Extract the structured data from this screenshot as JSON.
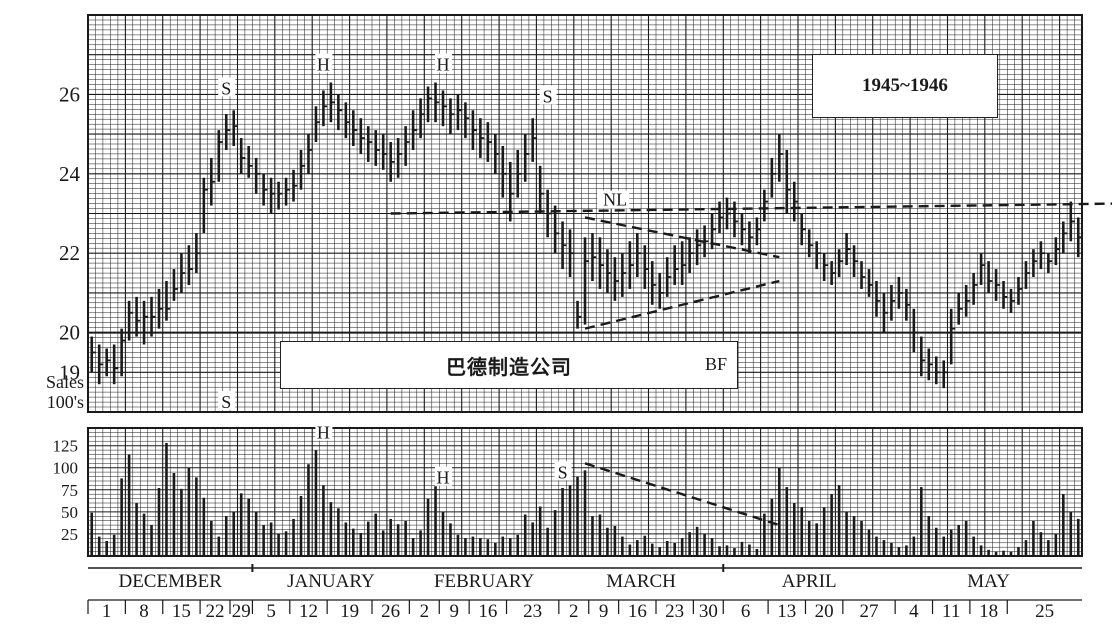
{
  "chart_data": {
    "type": "bar",
    "title": "1945~1946",
    "company": "巴德制造公司",
    "ticker": "BF",
    "price_axis": {
      "ticks": [
        19,
        20,
        22,
        24,
        26
      ],
      "tick_labels": [
        "19",
        "20",
        "22",
        "24",
        "26"
      ],
      "ylim": [
        18,
        28
      ]
    },
    "volume_axis": {
      "label_line1": "Sales",
      "label_line2": "100's",
      "ticks": [
        25,
        50,
        75,
        100,
        125
      ],
      "tick_labels": [
        "25",
        "50",
        "75",
        "100",
        "125"
      ],
      "ylim": [
        0,
        145
      ]
    },
    "months": [
      "DECEMBER",
      "JANUARY",
      "FEBRUARY",
      "MARCH",
      "APRIL",
      "MAY"
    ],
    "week_labels": [
      "1",
      "8",
      "15",
      "22",
      "29",
      "5",
      "12",
      "19",
      "26",
      "2",
      "9",
      "16",
      "23",
      "2",
      "9",
      "16",
      "23",
      "30",
      "6",
      "13",
      "20",
      "27",
      "4",
      "11",
      "18",
      "25"
    ],
    "daily": [
      [
        19.9,
        19.0,
        19.5,
        49
      ],
      [
        19.7,
        18.7,
        19.2,
        22
      ],
      [
        19.6,
        18.9,
        19.3,
        17
      ],
      [
        19.7,
        18.7,
        19.1,
        24
      ],
      [
        20.1,
        18.9,
        19.8,
        88
      ],
      [
        20.8,
        19.8,
        20.5,
        115
      ],
      [
        20.9,
        19.9,
        20.3,
        60
      ],
      [
        20.8,
        19.7,
        20.4,
        48
      ],
      [
        20.9,
        19.9,
        20.4,
        35
      ],
      [
        21.1,
        20.1,
        20.6,
        77
      ],
      [
        21.3,
        20.3,
        20.6,
        128
      ],
      [
        21.6,
        20.8,
        21.1,
        94
      ],
      [
        22.0,
        21.0,
        21.5,
        76
      ],
      [
        22.2,
        21.2,
        21.6,
        100
      ],
      [
        22.5,
        21.5,
        22.0,
        89
      ],
      [
        23.9,
        22.5,
        23.6,
        66
      ],
      [
        24.4,
        23.2,
        23.8,
        40
      ],
      [
        25.1,
        23.8,
        24.8,
        22
      ],
      [
        25.5,
        24.6,
        25.1,
        45
      ],
      [
        25.6,
        24.7,
        25.2,
        50
      ],
      [
        24.9,
        24.0,
        24.4,
        71
      ],
      [
        24.7,
        23.9,
        24.2,
        65
      ],
      [
        24.4,
        23.5,
        24.0,
        50
      ],
      [
        24.0,
        23.2,
        23.6,
        35
      ],
      [
        23.9,
        23.0,
        23.5,
        38
      ],
      [
        23.8,
        23.1,
        23.5,
        25
      ],
      [
        23.9,
        23.2,
        23.6,
        28
      ],
      [
        24.1,
        23.3,
        23.7,
        42
      ],
      [
        24.6,
        23.6,
        24.2,
        68
      ],
      [
        25.0,
        24.0,
        24.6,
        104
      ],
      [
        25.7,
        24.8,
        25.3,
        120
      ],
      [
        26.1,
        25.2,
        25.7,
        80
      ],
      [
        26.3,
        25.3,
        25.8,
        61
      ],
      [
        26.0,
        25.1,
        25.6,
        54
      ],
      [
        25.8,
        24.9,
        25.3,
        38
      ],
      [
        25.6,
        24.7,
        25.1,
        31
      ],
      [
        25.4,
        24.5,
        24.9,
        26
      ],
      [
        25.2,
        24.3,
        24.8,
        39
      ],
      [
        25.1,
        24.2,
        24.6,
        48
      ],
      [
        25.0,
        24.1,
        24.5,
        29
      ],
      [
        24.8,
        23.8,
        24.3,
        42
      ],
      [
        24.9,
        23.9,
        24.5,
        36
      ],
      [
        25.2,
        24.2,
        24.8,
        40
      ],
      [
        25.6,
        24.6,
        25.1,
        20
      ],
      [
        25.9,
        24.9,
        25.5,
        29
      ],
      [
        26.2,
        25.3,
        25.9,
        65
      ],
      [
        26.3,
        25.3,
        25.8,
        79
      ],
      [
        26.1,
        25.2,
        25.7,
        50
      ],
      [
        25.9,
        25.0,
        25.5,
        37
      ],
      [
        26.0,
        25.1,
        25.6,
        24
      ],
      [
        25.8,
        24.9,
        25.4,
        20
      ],
      [
        25.6,
        24.6,
        25.1,
        22
      ],
      [
        25.4,
        24.4,
        24.9,
        20
      ],
      [
        25.3,
        24.3,
        24.8,
        19
      ],
      [
        25.0,
        24.0,
        24.5,
        15
      ],
      [
        24.7,
        23.4,
        24.0,
        22
      ],
      [
        24.3,
        22.8,
        23.5,
        20
      ],
      [
        24.6,
        23.4,
        24.0,
        24
      ],
      [
        25.0,
        23.8,
        24.5,
        47
      ],
      [
        25.4,
        24.3,
        24.9,
        38
      ],
      [
        24.2,
        23.0,
        23.5,
        56
      ],
      [
        23.6,
        22.4,
        23.0,
        32
      ],
      [
        23.2,
        22.0,
        22.5,
        52
      ],
      [
        22.8,
        21.6,
        22.2,
        77
      ],
      [
        22.6,
        21.4,
        22.0,
        80
      ],
      [
        20.8,
        20.1,
        20.4,
        90
      ],
      [
        22.4,
        20.2,
        21.8,
        97
      ],
      [
        22.5,
        21.3,
        21.9,
        45
      ],
      [
        22.4,
        21.1,
        21.7,
        47
      ],
      [
        22.1,
        21.0,
        21.5,
        32
      ],
      [
        21.9,
        20.8,
        21.3,
        34
      ],
      [
        22.0,
        20.9,
        21.5,
        22
      ],
      [
        22.3,
        21.1,
        21.7,
        13
      ],
      [
        22.5,
        21.4,
        22.0,
        18
      ],
      [
        22.2,
        21.1,
        21.6,
        23
      ],
      [
        21.8,
        20.7,
        21.2,
        14
      ],
      [
        21.5,
        20.6,
        21.0,
        10
      ],
      [
        21.9,
        20.9,
        21.4,
        17
      ],
      [
        22.2,
        21.2,
        21.6,
        15
      ],
      [
        22.3,
        21.2,
        21.7,
        20
      ],
      [
        22.4,
        21.5,
        22.0,
        27
      ],
      [
        22.6,
        21.7,
        22.2,
        33
      ],
      [
        22.7,
        21.9,
        22.3,
        25
      ],
      [
        23.0,
        22.1,
        22.6,
        20
      ],
      [
        23.3,
        22.5,
        22.9,
        11
      ],
      [
        23.4,
        22.6,
        23.0,
        12
      ],
      [
        23.3,
        22.4,
        22.8,
        9
      ],
      [
        23.0,
        22.2,
        22.6,
        16
      ],
      [
        22.8,
        22.0,
        22.4,
        13
      ],
      [
        22.9,
        22.2,
        22.6,
        8
      ],
      [
        23.6,
        22.8,
        23.3,
        48
      ],
      [
        24.4,
        23.4,
        24.0,
        65
      ],
      [
        25.0,
        23.8,
        24.5,
        100
      ],
      [
        24.6,
        23.0,
        23.6,
        78
      ],
      [
        23.8,
        22.8,
        23.3,
        60
      ],
      [
        23.0,
        22.2,
        22.6,
        55
      ],
      [
        22.6,
        21.9,
        22.2,
        40
      ],
      [
        22.3,
        21.6,
        22.0,
        37
      ],
      [
        22.0,
        21.3,
        21.7,
        55
      ],
      [
        21.8,
        21.2,
        21.5,
        70
      ],
      [
        22.1,
        21.4,
        21.8,
        80
      ],
      [
        22.5,
        21.7,
        22.1,
        50
      ],
      [
        22.2,
        21.4,
        21.8,
        45
      ],
      [
        21.8,
        21.1,
        21.4,
        40
      ],
      [
        21.6,
        20.9,
        21.2,
        30
      ],
      [
        21.3,
        20.4,
        20.8,
        22
      ],
      [
        21.0,
        20.0,
        20.5,
        18
      ],
      [
        21.2,
        20.3,
        20.8,
        15
      ],
      [
        21.4,
        20.6,
        21.0,
        10
      ],
      [
        21.1,
        20.3,
        20.7,
        12
      ],
      [
        20.6,
        19.5,
        20.0,
        22
      ],
      [
        19.9,
        18.9,
        19.3,
        78
      ],
      [
        19.6,
        18.8,
        19.2,
        45
      ],
      [
        19.4,
        18.7,
        19.0,
        32
      ],
      [
        19.3,
        18.6,
        19.0,
        22
      ],
      [
        20.6,
        19.2,
        20.1,
        30
      ],
      [
        21.0,
        20.2,
        20.6,
        35
      ],
      [
        21.2,
        20.4,
        20.8,
        40
      ],
      [
        21.5,
        20.7,
        21.2,
        22
      ],
      [
        22.0,
        21.2,
        21.7,
        12
      ],
      [
        21.8,
        21.0,
        21.3,
        7
      ],
      [
        21.6,
        20.8,
        21.2,
        5
      ],
      [
        21.3,
        20.6,
        20.9,
        6
      ],
      [
        21.1,
        20.5,
        20.8,
        5
      ],
      [
        21.4,
        20.7,
        21.1,
        10
      ],
      [
        21.8,
        21.1,
        21.5,
        18
      ],
      [
        22.1,
        21.4,
        21.8,
        40
      ],
      [
        22.3,
        21.6,
        22.0,
        27
      ],
      [
        22.0,
        21.5,
        21.8,
        18
      ],
      [
        22.4,
        21.7,
        22.1,
        25
      ],
      [
        22.8,
        22.0,
        22.5,
        70
      ],
      [
        23.3,
        22.3,
        22.8,
        50
      ],
      [
        22.9,
        21.9,
        22.4,
        42
      ]
    ],
    "neckline": {
      "label": "NL",
      "x": [
        40,
        137
      ],
      "y": [
        23.0,
        23.25
      ]
    },
    "triangle_upper": {
      "x": [
        66,
        92
      ],
      "y": [
        22.9,
        21.9
      ]
    },
    "triangle_lower": {
      "x": [
        66,
        92
      ],
      "y": [
        20.1,
        21.3
      ]
    },
    "volume_trend": {
      "x": [
        66,
        92
      ],
      "y": [
        105,
        35
      ]
    },
    "markers": [
      {
        "text": "S",
        "x": 18,
        "y": 26.0,
        "panel": "price"
      },
      {
        "text": "H",
        "x": 31,
        "y": 26.6,
        "panel": "price"
      },
      {
        "text": "H",
        "x": 47,
        "y": 26.6,
        "panel": "price"
      },
      {
        "text": "S",
        "x": 61,
        "y": 25.8,
        "panel": "price"
      },
      {
        "text": "S",
        "x": 18,
        "y": 18.1,
        "panel": "price"
      },
      {
        "text": "H",
        "x": 31,
        "y": 133,
        "panel": "volume"
      },
      {
        "text": "H",
        "x": 47,
        "y": 82,
        "panel": "volume"
      },
      {
        "text": "S",
        "x": 63,
        "y": 88,
        "panel": "volume"
      }
    ],
    "grid": true
  }
}
